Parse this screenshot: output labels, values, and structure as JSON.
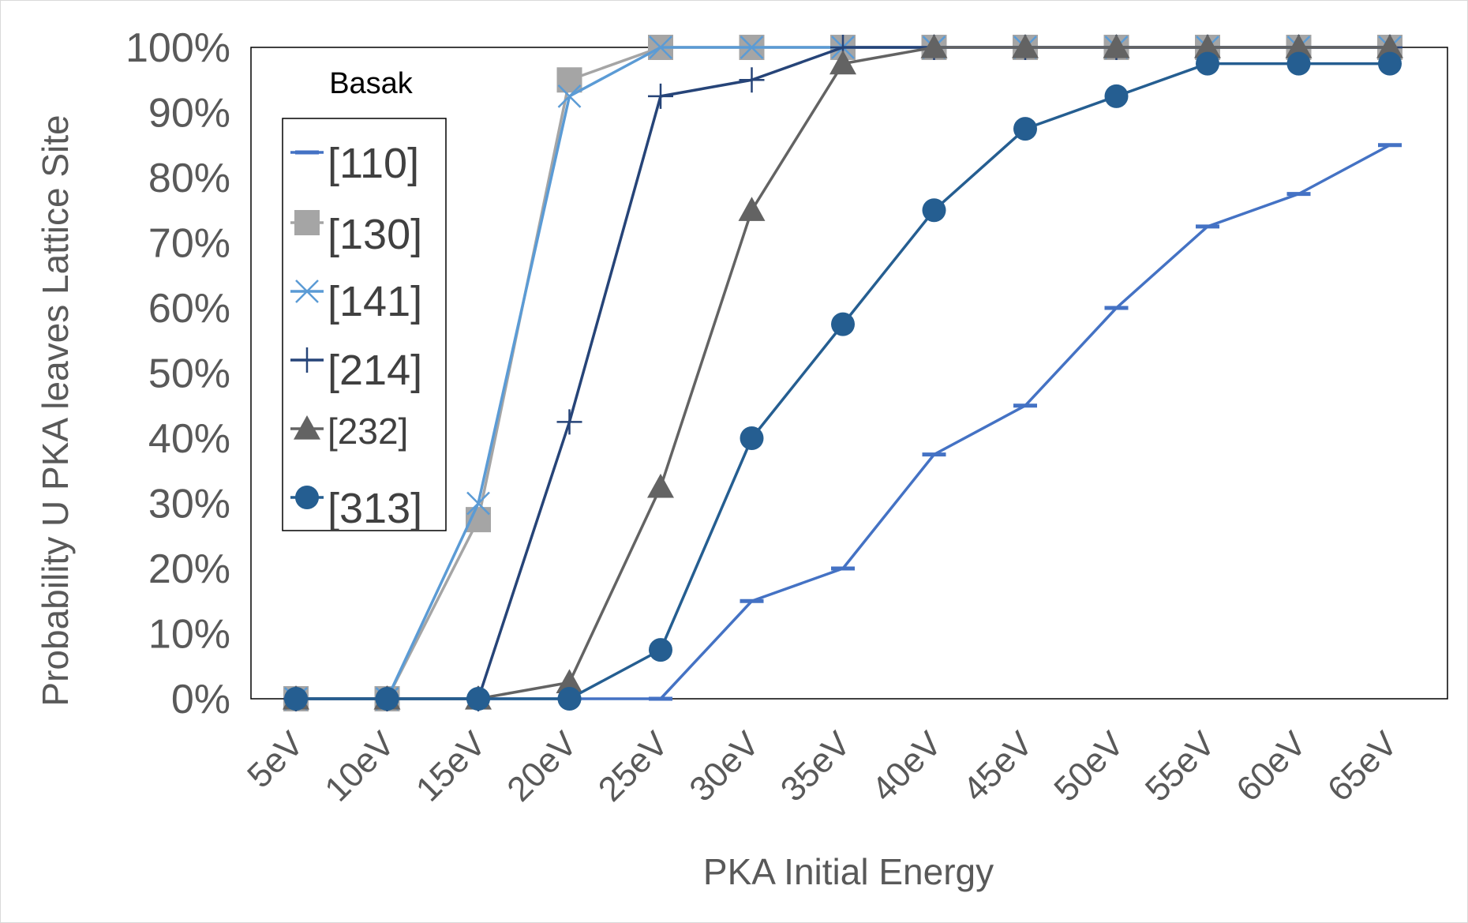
{
  "chart_data": {
    "type": "line",
    "title": "",
    "xlabel": "PKA Initial Energy",
    "ylabel": "Probability U PKA leaves Lattice Site",
    "categories": [
      "5eV",
      "10eV",
      "15eV",
      "20eV",
      "25eV",
      "30eV",
      "35eV",
      "40eV",
      "45eV",
      "50eV",
      "55eV",
      "60eV",
      "65eV"
    ],
    "ylim": [
      0,
      100
    ],
    "yticks": [
      "0%",
      "10%",
      "20%",
      "30%",
      "40%",
      "50%",
      "60%",
      "70%",
      "80%",
      "90%",
      "100%"
    ],
    "grid": false,
    "legend_title": "Basak",
    "legend_position": "top-left",
    "series": [
      {
        "name": "[110]",
        "color": "#4472c4",
        "marker": "dash",
        "values": [
          0,
          0,
          0,
          0,
          0,
          15,
          20,
          37.5,
          45,
          60,
          72.5,
          77.5,
          85
        ]
      },
      {
        "name": "[130]",
        "color": "#a5a5a5",
        "marker": "square",
        "values": [
          0,
          0,
          27.5,
          95,
          100,
          100,
          100,
          100,
          100,
          100,
          100,
          100,
          100
        ]
      },
      {
        "name": "[141]",
        "color": "#5b9bd5",
        "marker": "x",
        "values": [
          0,
          0,
          30,
          92.5,
          100,
          100,
          100,
          100,
          100,
          100,
          100,
          100,
          100
        ]
      },
      {
        "name": "[214]",
        "color": "#264478",
        "marker": "plus",
        "values": [
          0,
          0,
          0,
          42.5,
          92.5,
          95,
          100,
          100,
          100,
          100,
          100,
          100,
          100
        ]
      },
      {
        "name": "[232]",
        "color": "#636363",
        "marker": "triangle",
        "values": [
          0,
          0,
          0,
          2.5,
          32.5,
          75,
          97.5,
          100,
          100,
          100,
          100,
          100,
          100
        ]
      },
      {
        "name": "[313]",
        "color": "#255e91",
        "marker": "circle",
        "values": [
          0,
          0,
          0,
          0,
          7.5,
          40,
          57.5,
          75,
          87.5,
          92.5,
          97.5,
          97.5,
          97.5
        ]
      }
    ]
  }
}
